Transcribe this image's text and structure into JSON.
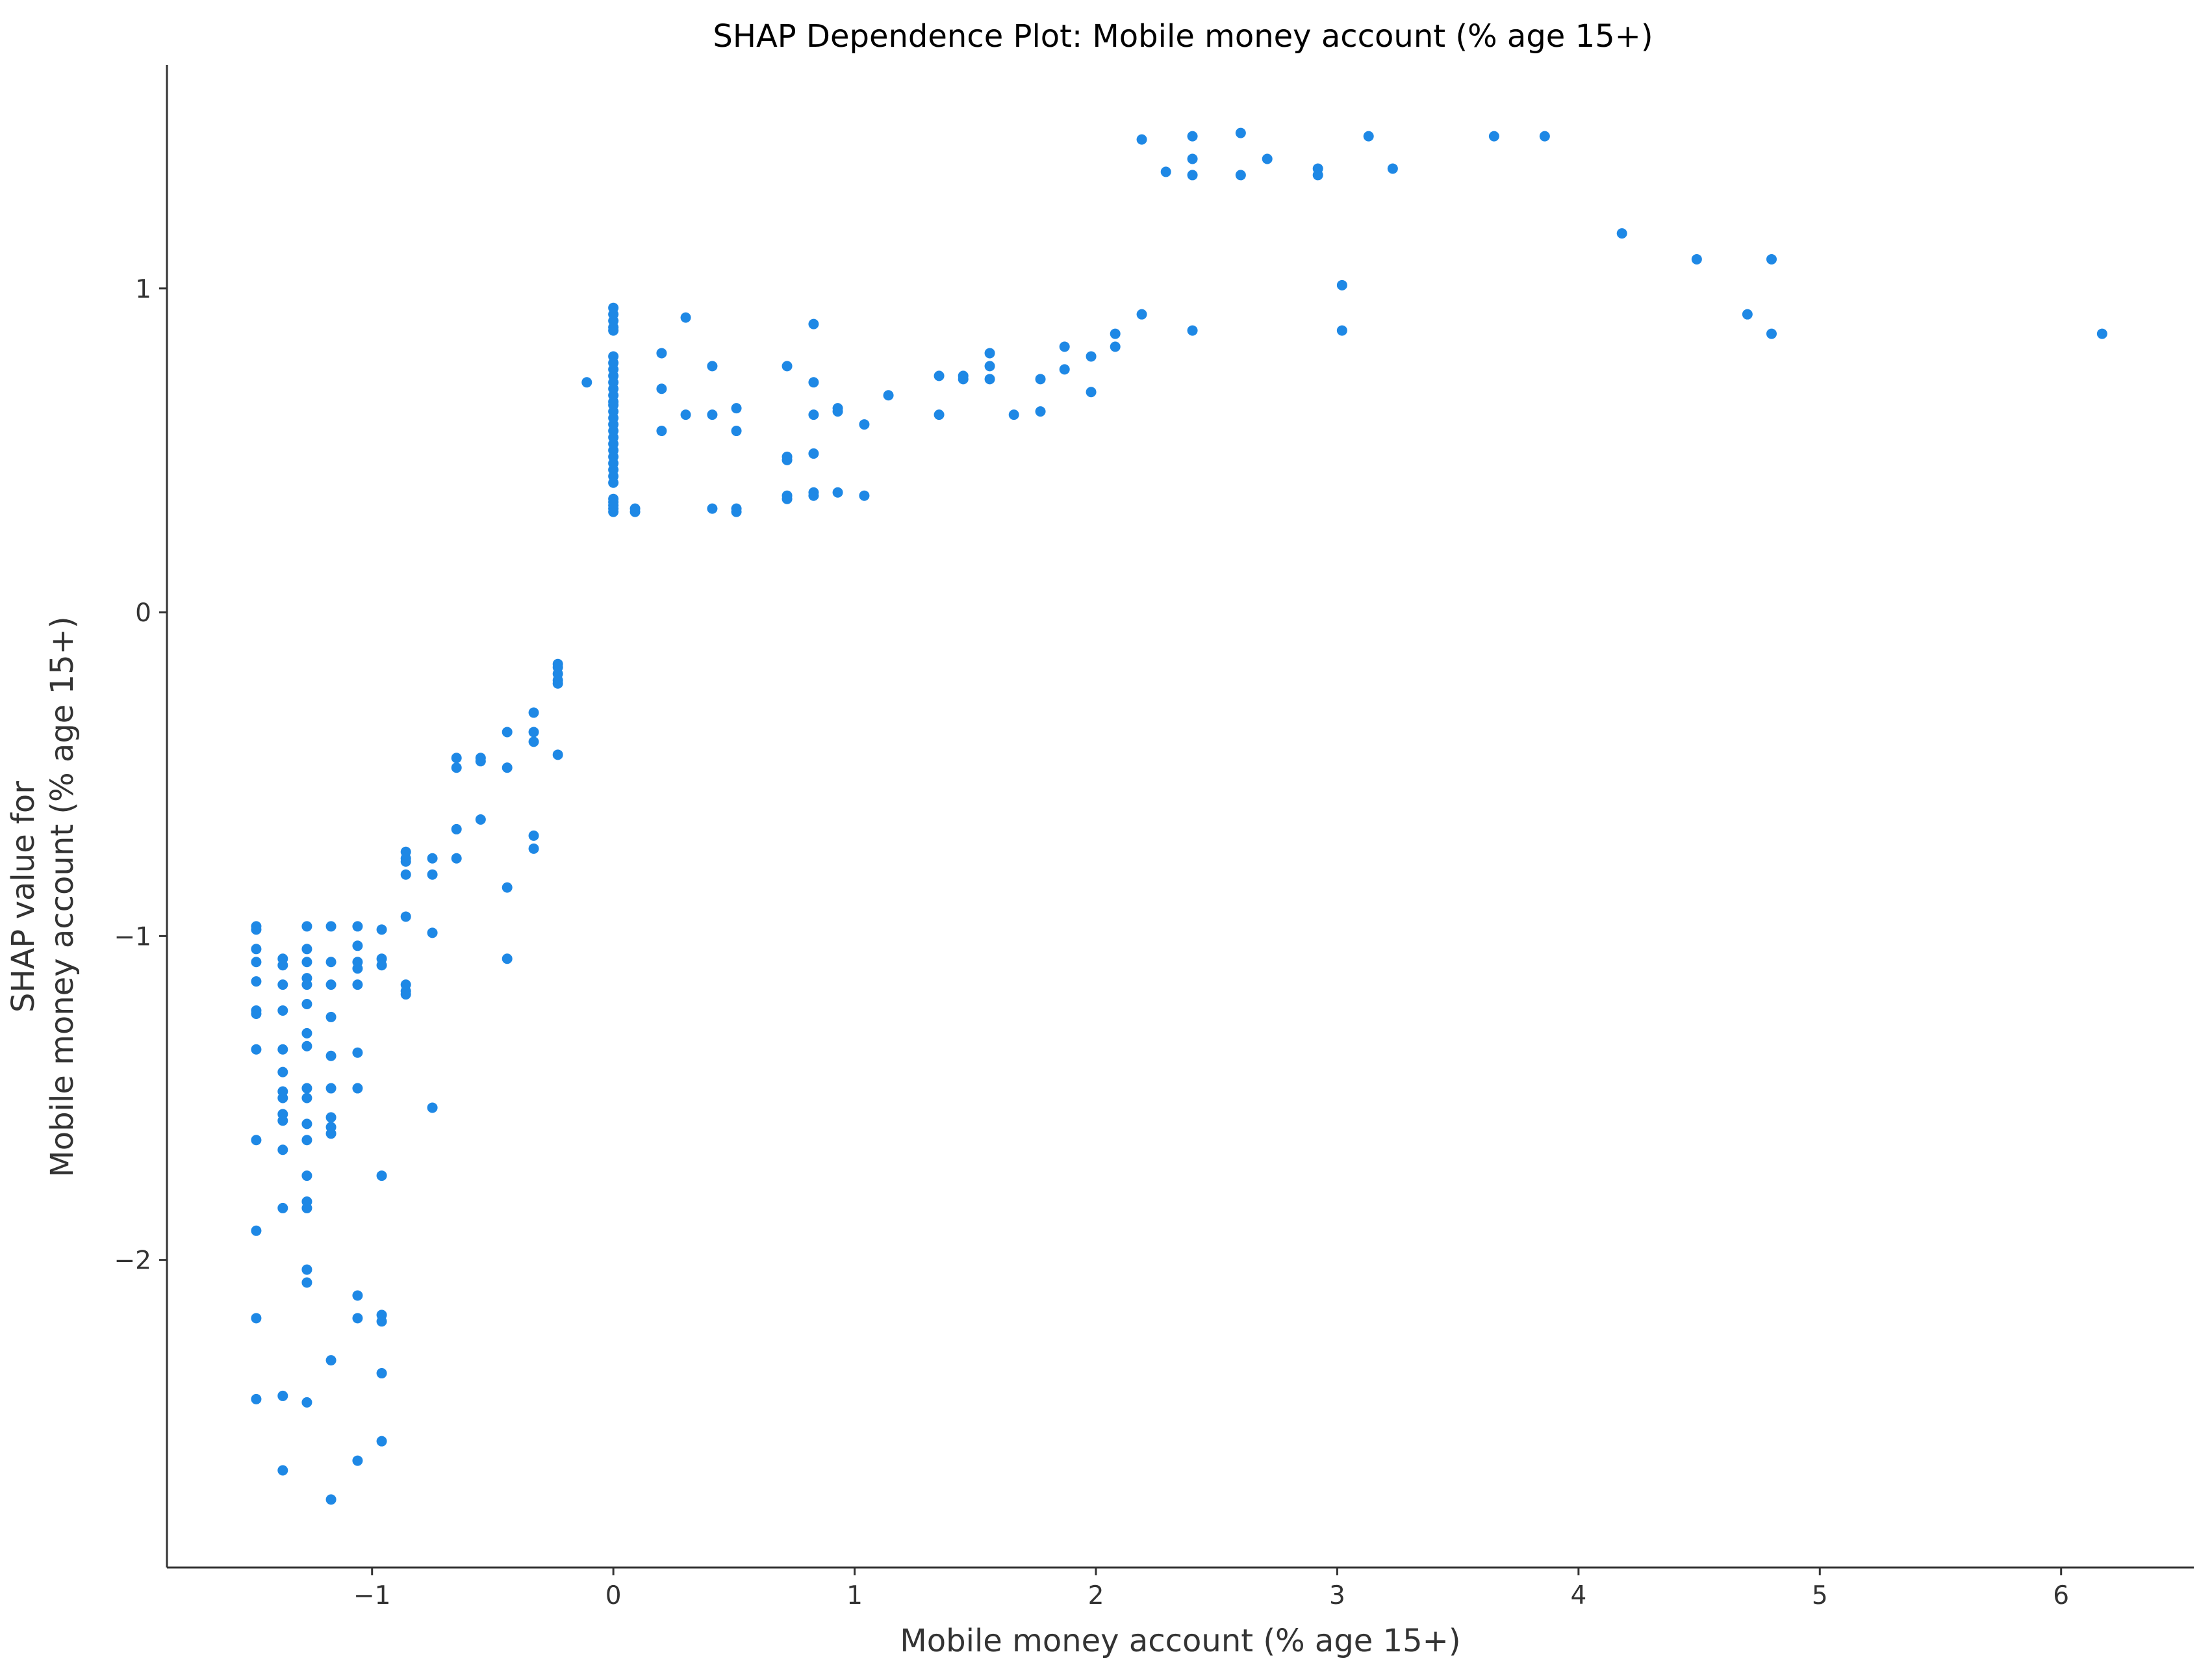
{
  "chart_data": {
    "type": "scatter",
    "title": "SHAP Dependence Plot: Mobile money account (% age 15+)",
    "xlabel": "Mobile money account (% age 15+)",
    "ylabel_lines": [
      "SHAP value for",
      "Mobile money account (% age 15+)"
    ],
    "xlim": [
      -1.85,
      6.55
    ],
    "ylim": [
      -2.95,
      1.69
    ],
    "x_ticks": [
      -1,
      0,
      1,
      2,
      3,
      4,
      5,
      6
    ],
    "x_tick_labels": [
      "−1",
      "0",
      "1",
      "2",
      "3",
      "4",
      "5",
      "6"
    ],
    "y_ticks": [
      1,
      0,
      -1,
      -2
    ],
    "y_tick_labels": [
      "1",
      "0",
      "−1",
      "−2"
    ],
    "grid": false,
    "legend": "none",
    "marker_color": "#1E88E5",
    "points": [
      [
        -1.48,
        -0.97
      ],
      [
        -1.48,
        -0.98
      ],
      [
        -1.48,
        -1.04
      ],
      [
        -1.48,
        -1.08
      ],
      [
        -1.48,
        -1.14
      ],
      [
        -1.48,
        -1.23
      ],
      [
        -1.48,
        -1.24
      ],
      [
        -1.48,
        -1.35
      ],
      [
        -1.48,
        -1.63
      ],
      [
        -1.48,
        -1.91
      ],
      [
        -1.48,
        -2.18
      ],
      [
        -1.48,
        -2.43
      ],
      [
        -1.37,
        -1.07
      ],
      [
        -1.37,
        -1.09
      ],
      [
        -1.37,
        -1.15
      ],
      [
        -1.37,
        -1.23
      ],
      [
        -1.37,
        -1.35
      ],
      [
        -1.37,
        -1.42
      ],
      [
        -1.37,
        -1.48
      ],
      [
        -1.37,
        -1.5
      ],
      [
        -1.37,
        -1.55
      ],
      [
        -1.37,
        -1.57
      ],
      [
        -1.37,
        -1.66
      ],
      [
        -1.37,
        -1.84
      ],
      [
        -1.37,
        -2.42
      ],
      [
        -1.37,
        -2.65
      ],
      [
        -1.27,
        -0.97
      ],
      [
        -1.27,
        -1.04
      ],
      [
        -1.27,
        -1.08
      ],
      [
        -1.27,
        -1.13
      ],
      [
        -1.27,
        -1.15
      ],
      [
        -1.27,
        -1.21
      ],
      [
        -1.27,
        -1.3
      ],
      [
        -1.27,
        -1.34
      ],
      [
        -1.27,
        -1.47
      ],
      [
        -1.27,
        -1.5
      ],
      [
        -1.27,
        -1.58
      ],
      [
        -1.27,
        -1.63
      ],
      [
        -1.27,
        -1.74
      ],
      [
        -1.27,
        -1.82
      ],
      [
        -1.27,
        -1.84
      ],
      [
        -1.27,
        -2.03
      ],
      [
        -1.27,
        -2.07
      ],
      [
        -1.27,
        -2.44
      ],
      [
        -1.17,
        -0.97
      ],
      [
        -1.17,
        -1.08
      ],
      [
        -1.17,
        -1.15
      ],
      [
        -1.17,
        -1.25
      ],
      [
        -1.17,
        -1.37
      ],
      [
        -1.17,
        -1.47
      ],
      [
        -1.17,
        -1.56
      ],
      [
        -1.17,
        -1.59
      ],
      [
        -1.17,
        -1.61
      ],
      [
        -1.17,
        -2.31
      ],
      [
        -1.17,
        -2.74
      ],
      [
        -1.06,
        -0.97
      ],
      [
        -1.06,
        -1.03
      ],
      [
        -1.06,
        -1.08
      ],
      [
        -1.06,
        -1.1
      ],
      [
        -1.06,
        -1.15
      ],
      [
        -1.06,
        -1.36
      ],
      [
        -1.06,
        -1.47
      ],
      [
        -1.06,
        -2.11
      ],
      [
        -1.06,
        -2.18
      ],
      [
        -1.06,
        -2.62
      ],
      [
        -0.96,
        -0.98
      ],
      [
        -0.96,
        -1.07
      ],
      [
        -0.96,
        -1.09
      ],
      [
        -0.96,
        -1.74
      ],
      [
        -0.96,
        -2.17
      ],
      [
        -0.96,
        -2.19
      ],
      [
        -0.96,
        -2.35
      ],
      [
        -0.96,
        -2.56
      ],
      [
        -0.86,
        -0.74
      ],
      [
        -0.86,
        -0.76
      ],
      [
        -0.86,
        -0.77
      ],
      [
        -0.86,
        -0.81
      ],
      [
        -0.86,
        -0.94
      ],
      [
        -0.86,
        -1.15
      ],
      [
        -0.86,
        -1.17
      ],
      [
        -0.86,
        -1.18
      ],
      [
        -0.75,
        -0.76
      ],
      [
        -0.75,
        -0.81
      ],
      [
        -0.75,
        -0.99
      ],
      [
        -0.75,
        -1.53
      ],
      [
        -0.65,
        -0.45
      ],
      [
        -0.65,
        -0.48
      ],
      [
        -0.65,
        -0.67
      ],
      [
        -0.65,
        -0.76
      ],
      [
        -0.55,
        -0.45
      ],
      [
        -0.55,
        -0.46
      ],
      [
        -0.55,
        -0.64
      ],
      [
        -0.44,
        -0.37
      ],
      [
        -0.44,
        -0.48
      ],
      [
        -0.44,
        -0.85
      ],
      [
        -0.44,
        -1.07
      ],
      [
        -0.33,
        -0.31
      ],
      [
        -0.33,
        -0.37
      ],
      [
        -0.33,
        -0.4
      ],
      [
        -0.33,
        -0.69
      ],
      [
        -0.33,
        -0.73
      ],
      [
        -0.23,
        -0.16
      ],
      [
        -0.23,
        -0.17
      ],
      [
        -0.23,
        -0.19
      ],
      [
        -0.23,
        -0.21
      ],
      [
        -0.23,
        -0.22
      ],
      [
        -0.23,
        -0.44
      ],
      [
        -0.11,
        0.71
      ],
      [
        0.0,
        0.94
      ],
      [
        0.0,
        0.92
      ],
      [
        0.0,
        0.9
      ],
      [
        0.0,
        0.88
      ],
      [
        0.0,
        0.87
      ],
      [
        0.0,
        0.79
      ],
      [
        0.0,
        0.77
      ],
      [
        0.0,
        0.75
      ],
      [
        0.0,
        0.73
      ],
      [
        0.0,
        0.71
      ],
      [
        0.0,
        0.69
      ],
      [
        0.0,
        0.67
      ],
      [
        0.0,
        0.65
      ],
      [
        0.0,
        0.64
      ],
      [
        0.0,
        0.62
      ],
      [
        0.0,
        0.6
      ],
      [
        0.0,
        0.58
      ],
      [
        0.0,
        0.56
      ],
      [
        0.0,
        0.54
      ],
      [
        0.0,
        0.52
      ],
      [
        0.0,
        0.5
      ],
      [
        0.0,
        0.48
      ],
      [
        0.0,
        0.46
      ],
      [
        0.0,
        0.44
      ],
      [
        0.0,
        0.42
      ],
      [
        0.0,
        0.4
      ],
      [
        0.0,
        0.35
      ],
      [
        0.0,
        0.34
      ],
      [
        0.0,
        0.33
      ],
      [
        0.0,
        0.32
      ],
      [
        0.0,
        0.31
      ],
      [
        0.09,
        0.32
      ],
      [
        0.09,
        0.31
      ],
      [
        0.2,
        0.8
      ],
      [
        0.2,
        0.69
      ],
      [
        0.2,
        0.56
      ],
      [
        0.3,
        0.91
      ],
      [
        0.3,
        0.61
      ],
      [
        0.41,
        0.76
      ],
      [
        0.41,
        0.61
      ],
      [
        0.41,
        0.32
      ],
      [
        0.51,
        0.63
      ],
      [
        0.51,
        0.56
      ],
      [
        0.51,
        0.32
      ],
      [
        0.51,
        0.31
      ],
      [
        0.72,
        0.76
      ],
      [
        0.72,
        0.48
      ],
      [
        0.72,
        0.47
      ],
      [
        0.72,
        0.36
      ],
      [
        0.72,
        0.35
      ],
      [
        0.83,
        0.89
      ],
      [
        0.83,
        0.71
      ],
      [
        0.83,
        0.61
      ],
      [
        0.83,
        0.49
      ],
      [
        0.83,
        0.37
      ],
      [
        0.83,
        0.36
      ],
      [
        0.93,
        0.63
      ],
      [
        0.93,
        0.62
      ],
      [
        0.93,
        0.37
      ],
      [
        1.04,
        0.58
      ],
      [
        1.04,
        0.36
      ],
      [
        1.14,
        0.67
      ],
      [
        1.35,
        0.73
      ],
      [
        1.35,
        0.61
      ],
      [
        1.45,
        0.73
      ],
      [
        1.45,
        0.72
      ],
      [
        1.56,
        0.8
      ],
      [
        1.56,
        0.76
      ],
      [
        1.56,
        0.72
      ],
      [
        1.66,
        0.61
      ],
      [
        1.77,
        0.72
      ],
      [
        1.77,
        0.62
      ],
      [
        1.87,
        0.82
      ],
      [
        1.87,
        0.75
      ],
      [
        1.98,
        0.79
      ],
      [
        1.98,
        0.68
      ],
      [
        2.08,
        0.86
      ],
      [
        2.08,
        0.82
      ],
      [
        2.19,
        1.46
      ],
      [
        2.19,
        0.92
      ],
      [
        2.29,
        1.36
      ],
      [
        2.4,
        1.47
      ],
      [
        2.4,
        1.4
      ],
      [
        2.4,
        1.35
      ],
      [
        2.4,
        0.87
      ],
      [
        2.6,
        1.48
      ],
      [
        2.6,
        1.35
      ],
      [
        2.71,
        1.4
      ],
      [
        2.92,
        1.37
      ],
      [
        2.92,
        1.35
      ],
      [
        3.02,
        1.01
      ],
      [
        3.02,
        0.87
      ],
      [
        3.13,
        1.47
      ],
      [
        3.23,
        1.37
      ],
      [
        3.65,
        1.47
      ],
      [
        3.86,
        1.47
      ],
      [
        4.18,
        1.17
      ],
      [
        4.49,
        1.09
      ],
      [
        4.7,
        0.92
      ],
      [
        4.8,
        1.09
      ],
      [
        4.8,
        0.86
      ],
      [
        6.17,
        0.86
      ]
    ]
  }
}
